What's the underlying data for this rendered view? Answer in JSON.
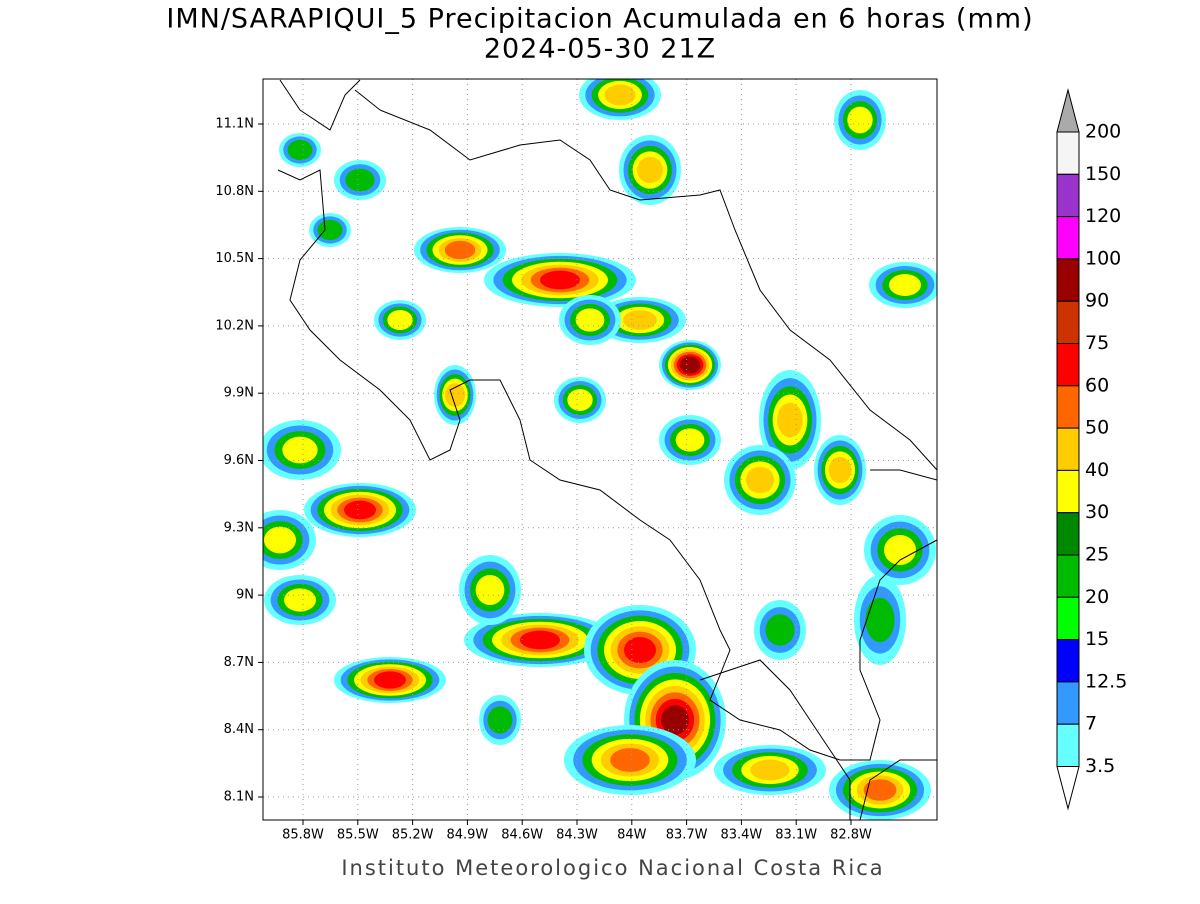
{
  "header": {
    "title": "IMN/SARAPIQUI_5 Precipitacion Acumulada en 6 horas (mm)",
    "subtitle": "2024-05-30 21Z"
  },
  "map": {
    "lat_labels": [
      "11.1N",
      "10.8N",
      "10.5N",
      "10.2N",
      "9.9N",
      "9.6N",
      "9.3N",
      "9N",
      "8.7N",
      "8.4N",
      "8.1N"
    ],
    "lon_labels": [
      "85.8W",
      "85.5W",
      "85.2W",
      "84.9W",
      "84.6W",
      "84.3W",
      "84W",
      "83.7W",
      "83.4W",
      "83.1W",
      "82.8W"
    ]
  },
  "colorbar": {
    "labels": [
      "200",
      "150",
      "120",
      "100",
      "90",
      "75",
      "60",
      "50",
      "40",
      "30",
      "25",
      "20",
      "15",
      "12.5",
      "7",
      "3.5"
    ],
    "colors": [
      "#f5f5f5",
      "#9933cc",
      "#ff00ff",
      "#990000",
      "#cc3300",
      "#ff0000",
      "#ff6600",
      "#ffcc00",
      "#ffff00",
      "#008800",
      "#00bb00",
      "#00ff00",
      "#0000ff",
      "#3399ff",
      "#66ffff"
    ],
    "over_color": "#aaaaaa"
  },
  "footer": {
    "credit": "Instituto Meteorologico Nacional Costa Rica"
  }
}
